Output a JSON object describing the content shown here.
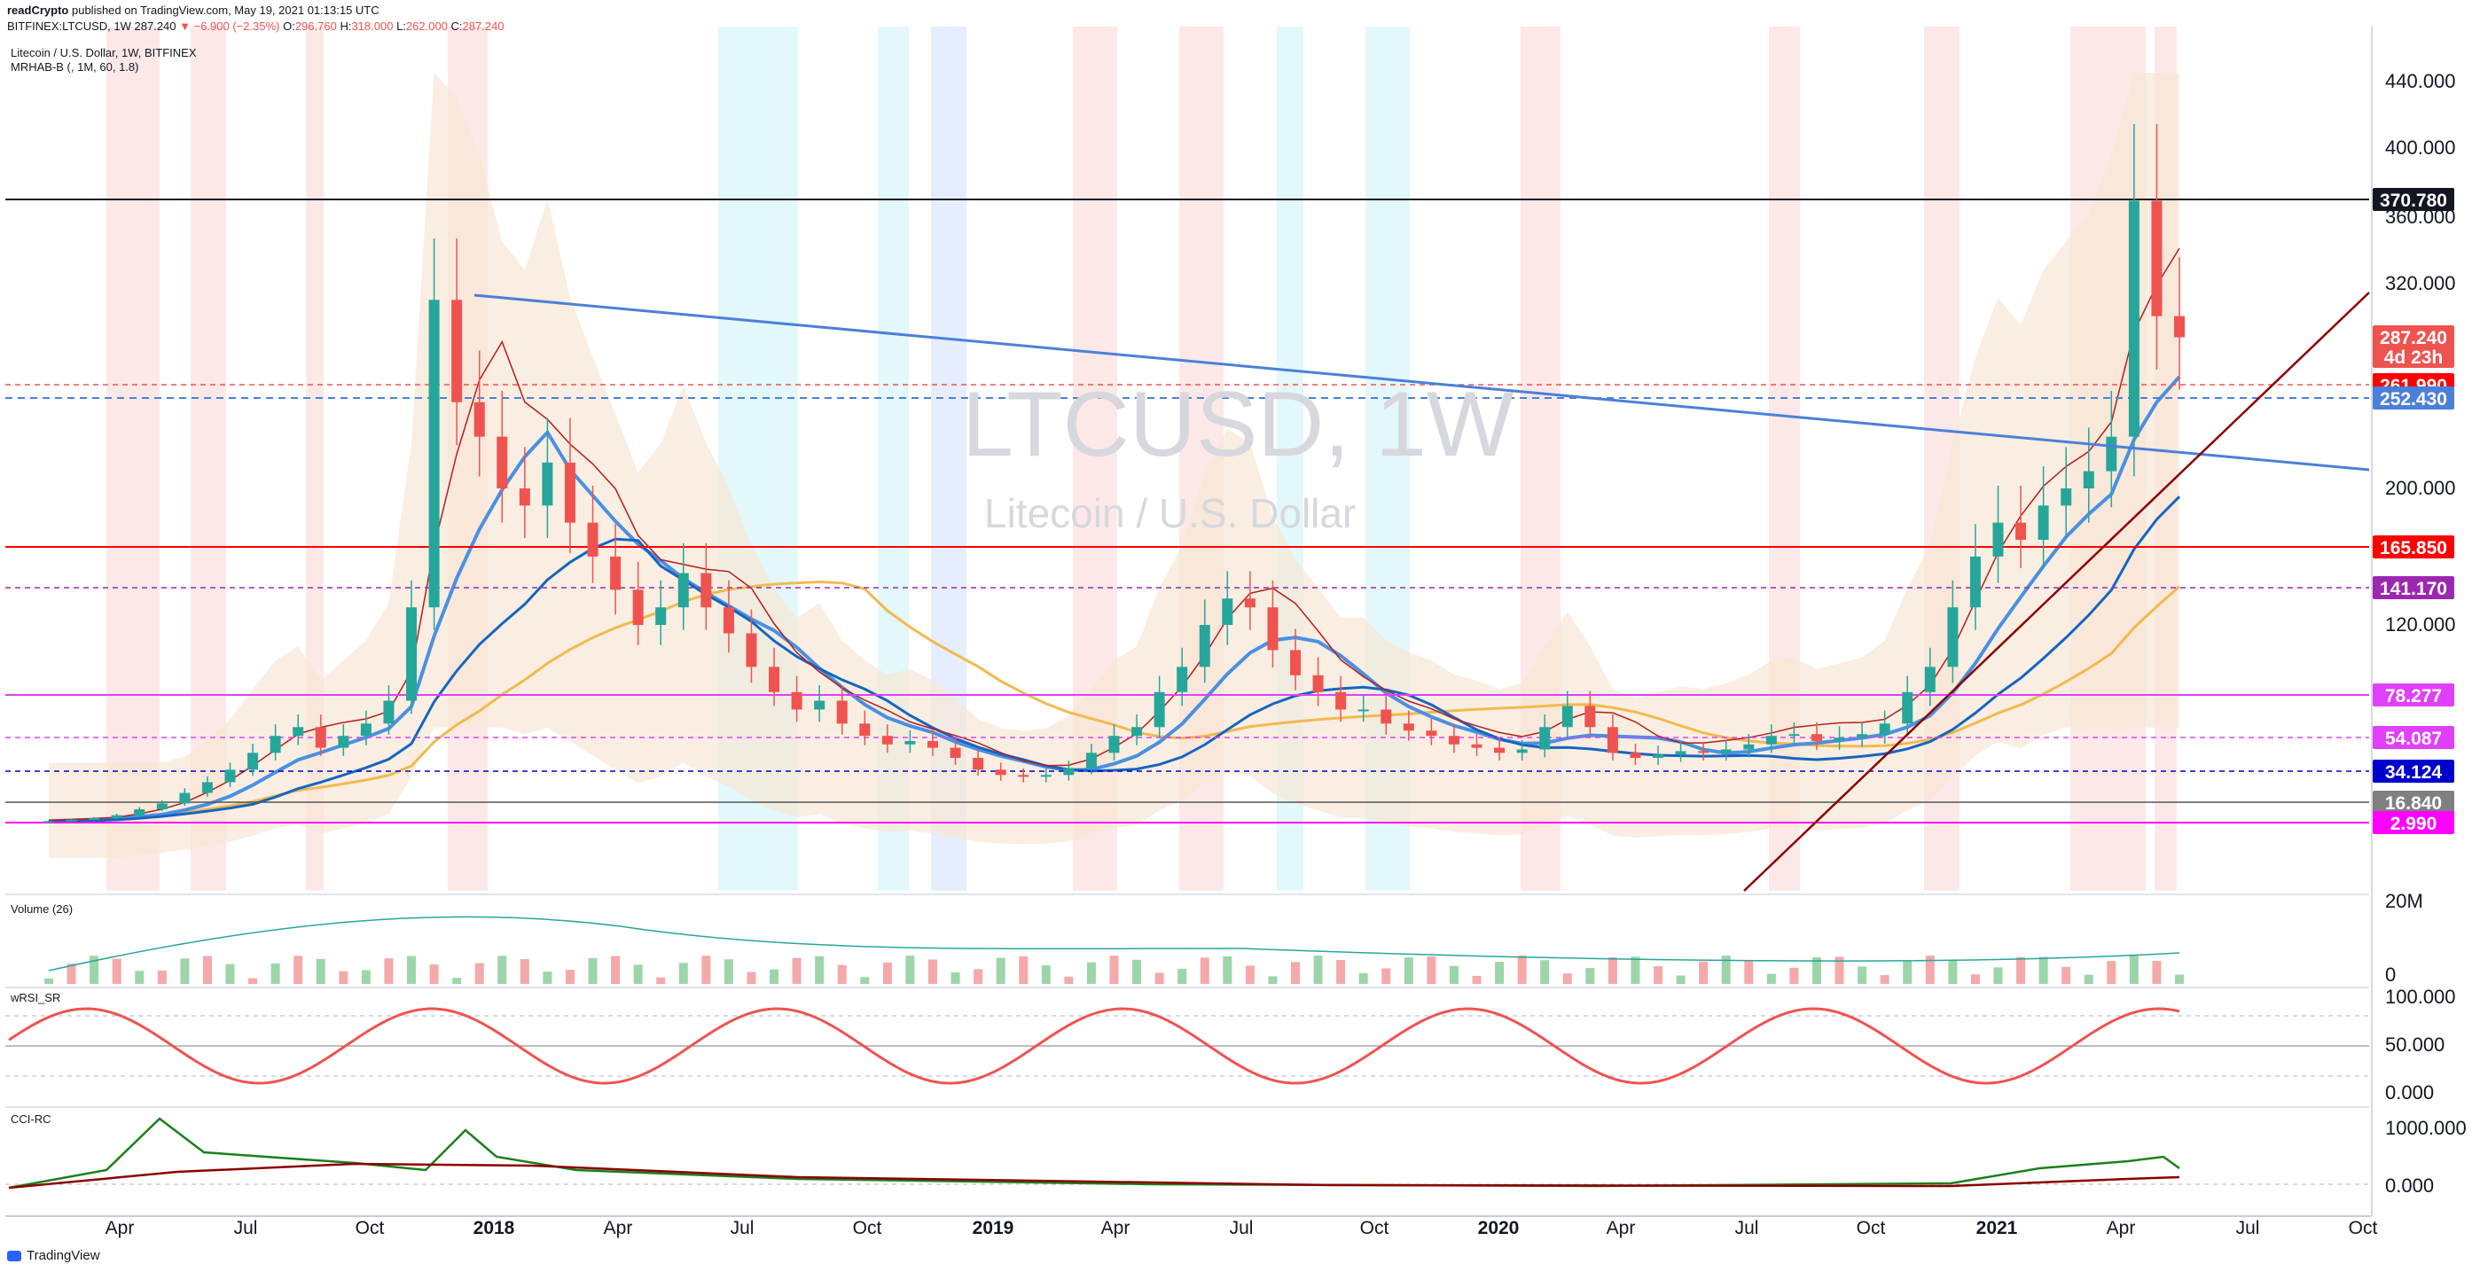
{
  "header": {
    "publisher": "readCrypto",
    "published_text": "published on TradingView.com, May 19, 2021 01:13:15 UTC",
    "symbol_line": "BITFINEX:LTCUSD, 1W",
    "last": "287.240",
    "change": "▼ −6.900 (−2.35%)",
    "o_label": "O:",
    "o_val": "296.760",
    "h_label": "H:",
    "h_val": "318.000",
    "l_label": "L:",
    "l_val": "262.000",
    "c_label": "C:",
    "c_val": "287.240"
  },
  "legend": {
    "title": "Litecoin / U.S. Dollar, 1W, BITFINEX",
    "indicator": "MRHAB-B (, 1M, 60, 1.8)"
  },
  "watermark": {
    "symbol": "LTCUSD, 1W",
    "name": "Litecoin / U.S. Dollar"
  },
  "panes": {
    "volume": "Volume (26)",
    "wrsi": "wRSI_SR",
    "cci": "CCI-RC"
  },
  "footer": {
    "brand": "TradingView"
  },
  "colors": {
    "up": "#26a69a",
    "down": "#ef5350",
    "trendline": "#4a80d9",
    "support": "#8b0000",
    "bg_red": "#fde6e6",
    "bg_cyan": "#dff7fa",
    "bg_blue": "#e3ecfd"
  },
  "chart_data": {
    "type": "candlestick",
    "title": "LTCUSD, 1W",
    "x_ticks": [
      "Apr",
      "Jul",
      "Oct",
      "2018",
      "Apr",
      "Jul",
      "Oct",
      "2019",
      "Apr",
      "Jul",
      "Oct",
      "2020",
      "Apr",
      "Jul",
      "Oct",
      "2021",
      "Apr",
      "Jul",
      "Oct"
    ],
    "y_axis": {
      "ticks": [
        "440.000",
        "400.000",
        "360.000",
        "320.000",
        "200.000",
        "120.000"
      ],
      "tick_values": [
        440,
        400,
        360,
        320,
        200,
        120
      ]
    },
    "price_tags": [
      {
        "label": "370.780",
        "value": 370.78,
        "color": "#131722"
      },
      {
        "label": "287.240",
        "value": 287.24,
        "color": "#ef5350",
        "sub": "4d 23h"
      },
      {
        "label": "261.990",
        "value": 261.99,
        "color": "#ff0000"
      },
      {
        "label": "252.430",
        "value": 252.43,
        "color": "#4a80d9"
      },
      {
        "label": "165.850",
        "value": 165.85,
        "color": "#ff0000"
      },
      {
        "label": "141.170",
        "value": 141.17,
        "color": "#9c27b0"
      },
      {
        "label": "78.277",
        "value": 78.277,
        "color": "#e040fb"
      },
      {
        "label": "54.087",
        "value": 54.087,
        "color": "#e040fb"
      },
      {
        "label": "34.124",
        "value": 34.124,
        "color": "#0000cc"
      },
      {
        "label": "16.840",
        "value": 16.84,
        "color": "#808080"
      },
      {
        "label": "2.990",
        "value": 2.99,
        "color": "#ff00ff"
      }
    ],
    "closes_approx": [
      4,
      5,
      6,
      8,
      12,
      16,
      22,
      28,
      35,
      45,
      55,
      60,
      48,
      55,
      62,
      75,
      130,
      310,
      250,
      230,
      200,
      190,
      215,
      180,
      160,
      140,
      120,
      130,
      150,
      130,
      115,
      95,
      80,
      70,
      75,
      62,
      55,
      50,
      52,
      48,
      42,
      35,
      32,
      31,
      32,
      36,
      45,
      55,
      60,
      80,
      95,
      120,
      135,
      130,
      105,
      90,
      80,
      70,
      70,
      62,
      58,
      55,
      50,
      48,
      45,
      47,
      60,
      72,
      60,
      45,
      42,
      44,
      46,
      45,
      47,
      50,
      55,
      56,
      52,
      54,
      56,
      62,
      80,
      95,
      130,
      160,
      180,
      170,
      190,
      200,
      210,
      230,
      370,
      300,
      287
    ],
    "volume": {
      "label": "Volume (26)",
      "ticks": [
        "20M",
        "0"
      ]
    },
    "wrsi": {
      "label": "wRSI_SR",
      "ticks": [
        "100.000",
        "50.000",
        "0.000"
      ],
      "range": [
        0,
        100
      ]
    },
    "cci": {
      "label": "CCI-RC",
      "ticks": [
        "1000.000",
        "0.000"
      ]
    }
  }
}
